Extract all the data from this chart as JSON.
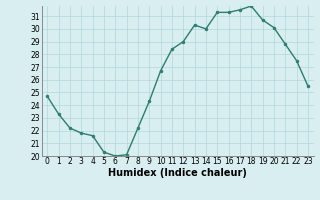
{
  "x": [
    0,
    1,
    2,
    3,
    4,
    5,
    6,
    7,
    8,
    9,
    10,
    11,
    12,
    13,
    14,
    15,
    16,
    17,
    18,
    19,
    20,
    21,
    22,
    23
  ],
  "y": [
    24.7,
    23.3,
    22.2,
    21.8,
    21.6,
    20.3,
    20.0,
    20.1,
    22.2,
    24.3,
    26.7,
    28.4,
    29.0,
    30.3,
    30.0,
    31.3,
    31.3,
    31.5,
    31.8,
    30.7,
    30.1,
    28.8,
    27.5,
    25.5
  ],
  "line_color": "#2e7d6e",
  "marker": "o",
  "marker_size": 2.0,
  "bg_color": "#d8eef0",
  "grid_color": "#b0d8dc",
  "xlabel": "Humidex (Indice chaleur)",
  "xlim": [
    -0.5,
    23.5
  ],
  "ylim": [
    20,
    31.8
  ],
  "yticks": [
    20,
    21,
    22,
    23,
    24,
    25,
    26,
    27,
    28,
    29,
    30,
    31
  ],
  "xticks": [
    0,
    1,
    2,
    3,
    4,
    5,
    6,
    7,
    8,
    9,
    10,
    11,
    12,
    13,
    14,
    15,
    16,
    17,
    18,
    19,
    20,
    21,
    22,
    23
  ],
  "tick_fontsize": 5.5,
  "xlabel_fontsize": 7.0,
  "line_width": 1.0
}
